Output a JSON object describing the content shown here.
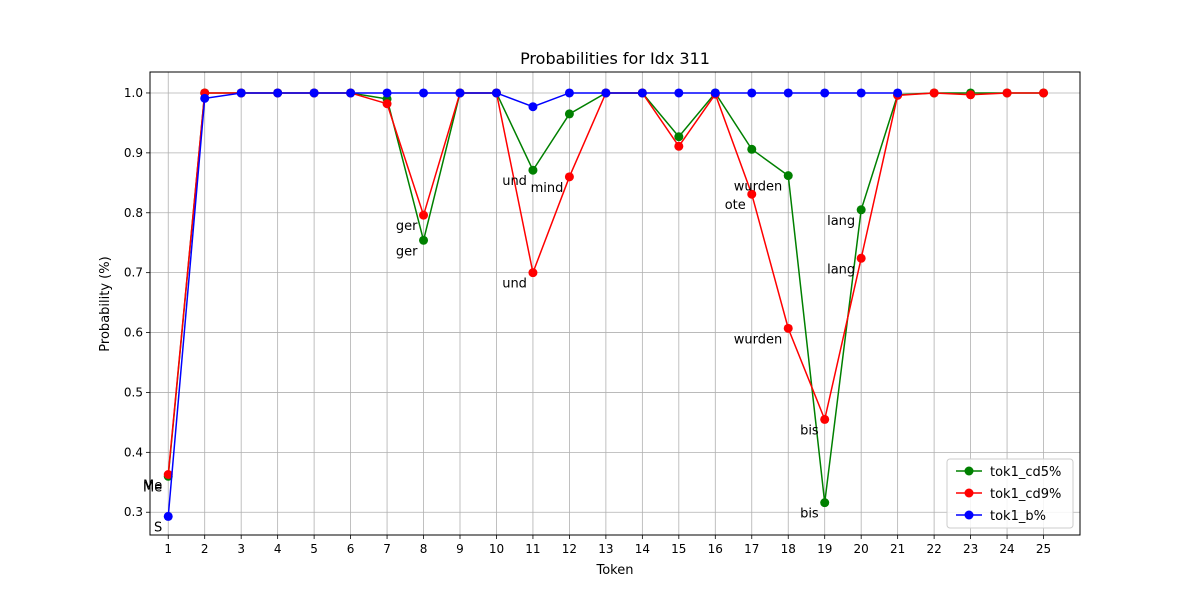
{
  "chart_data": {
    "type": "line",
    "title": "Probabilities for Idx 311",
    "xlabel": "Token",
    "ylabel": "Probability (%)",
    "x": [
      1,
      2,
      3,
      4,
      5,
      6,
      7,
      8,
      9,
      10,
      11,
      12,
      13,
      14,
      15,
      16,
      17,
      18,
      19,
      20,
      21,
      22,
      23,
      24,
      25
    ],
    "xlim": [
      0.5,
      26.0
    ],
    "ylim": [
      0.262,
      1.035
    ],
    "yticks": [
      0.3,
      0.4,
      0.5,
      0.6,
      0.7,
      0.8,
      0.9,
      1.0
    ],
    "grid": true,
    "legend_position": "lower-right",
    "series": [
      {
        "name": "tok1_cd5%",
        "color": "#008000",
        "values": [
          0.36,
          1.0,
          1.0,
          1.0,
          1.0,
          1.0,
          0.99,
          0.754,
          1.0,
          1.0,
          0.871,
          0.965,
          1.0,
          1.0,
          0.927,
          1.0,
          0.906,
          0.862,
          0.316,
          0.805,
          0.997,
          1.0,
          1.0,
          1.0,
          1.0
        ]
      },
      {
        "name": "tok1_cd9%",
        "color": "#ff0000",
        "values": [
          0.363,
          1.0,
          1.0,
          1.0,
          1.0,
          1.0,
          0.982,
          0.796,
          1.0,
          1.0,
          0.7,
          0.86,
          1.0,
          1.0,
          0.911,
          0.998,
          0.831,
          0.607,
          0.455,
          0.724,
          0.996,
          1.0,
          0.997,
          1.0,
          1.0
        ]
      },
      {
        "name": "tok1_b%",
        "color": "#0000ff",
        "values": [
          0.293,
          0.991,
          1.0,
          1.0,
          1.0,
          1.0,
          1.0,
          1.0,
          1.0,
          1.0,
          0.977,
          1.0,
          1.0,
          1.0,
          1.0,
          1.0,
          1.0,
          1.0,
          1.0,
          1.0,
          1.0,
          null,
          null,
          null,
          null
        ]
      }
    ],
    "annotations": [
      {
        "text": "Me",
        "x": 1,
        "y": 0.36
      },
      {
        "text": "Me",
        "x": 1,
        "y": 0.363
      },
      {
        "text": "S",
        "x": 1,
        "y": 0.293
      },
      {
        "text": "ger",
        "x": 8,
        "y": 0.796
      },
      {
        "text": "ger",
        "x": 8,
        "y": 0.754
      },
      {
        "text": "und",
        "x": 11,
        "y": 0.871
      },
      {
        "text": "mind",
        "x": 12,
        "y": 0.86
      },
      {
        "text": "und",
        "x": 11,
        "y": 0.7
      },
      {
        "text": "wurden",
        "x": 18,
        "y": 0.862
      },
      {
        "text": "ote",
        "x": 17,
        "y": 0.831
      },
      {
        "text": "lang",
        "x": 20,
        "y": 0.805
      },
      {
        "text": "lang",
        "x": 20,
        "y": 0.724
      },
      {
        "text": "wurden",
        "x": 18,
        "y": 0.607
      },
      {
        "text": "bis",
        "x": 19,
        "y": 0.455
      },
      {
        "text": "bis",
        "x": 19,
        "y": 0.316
      }
    ]
  }
}
